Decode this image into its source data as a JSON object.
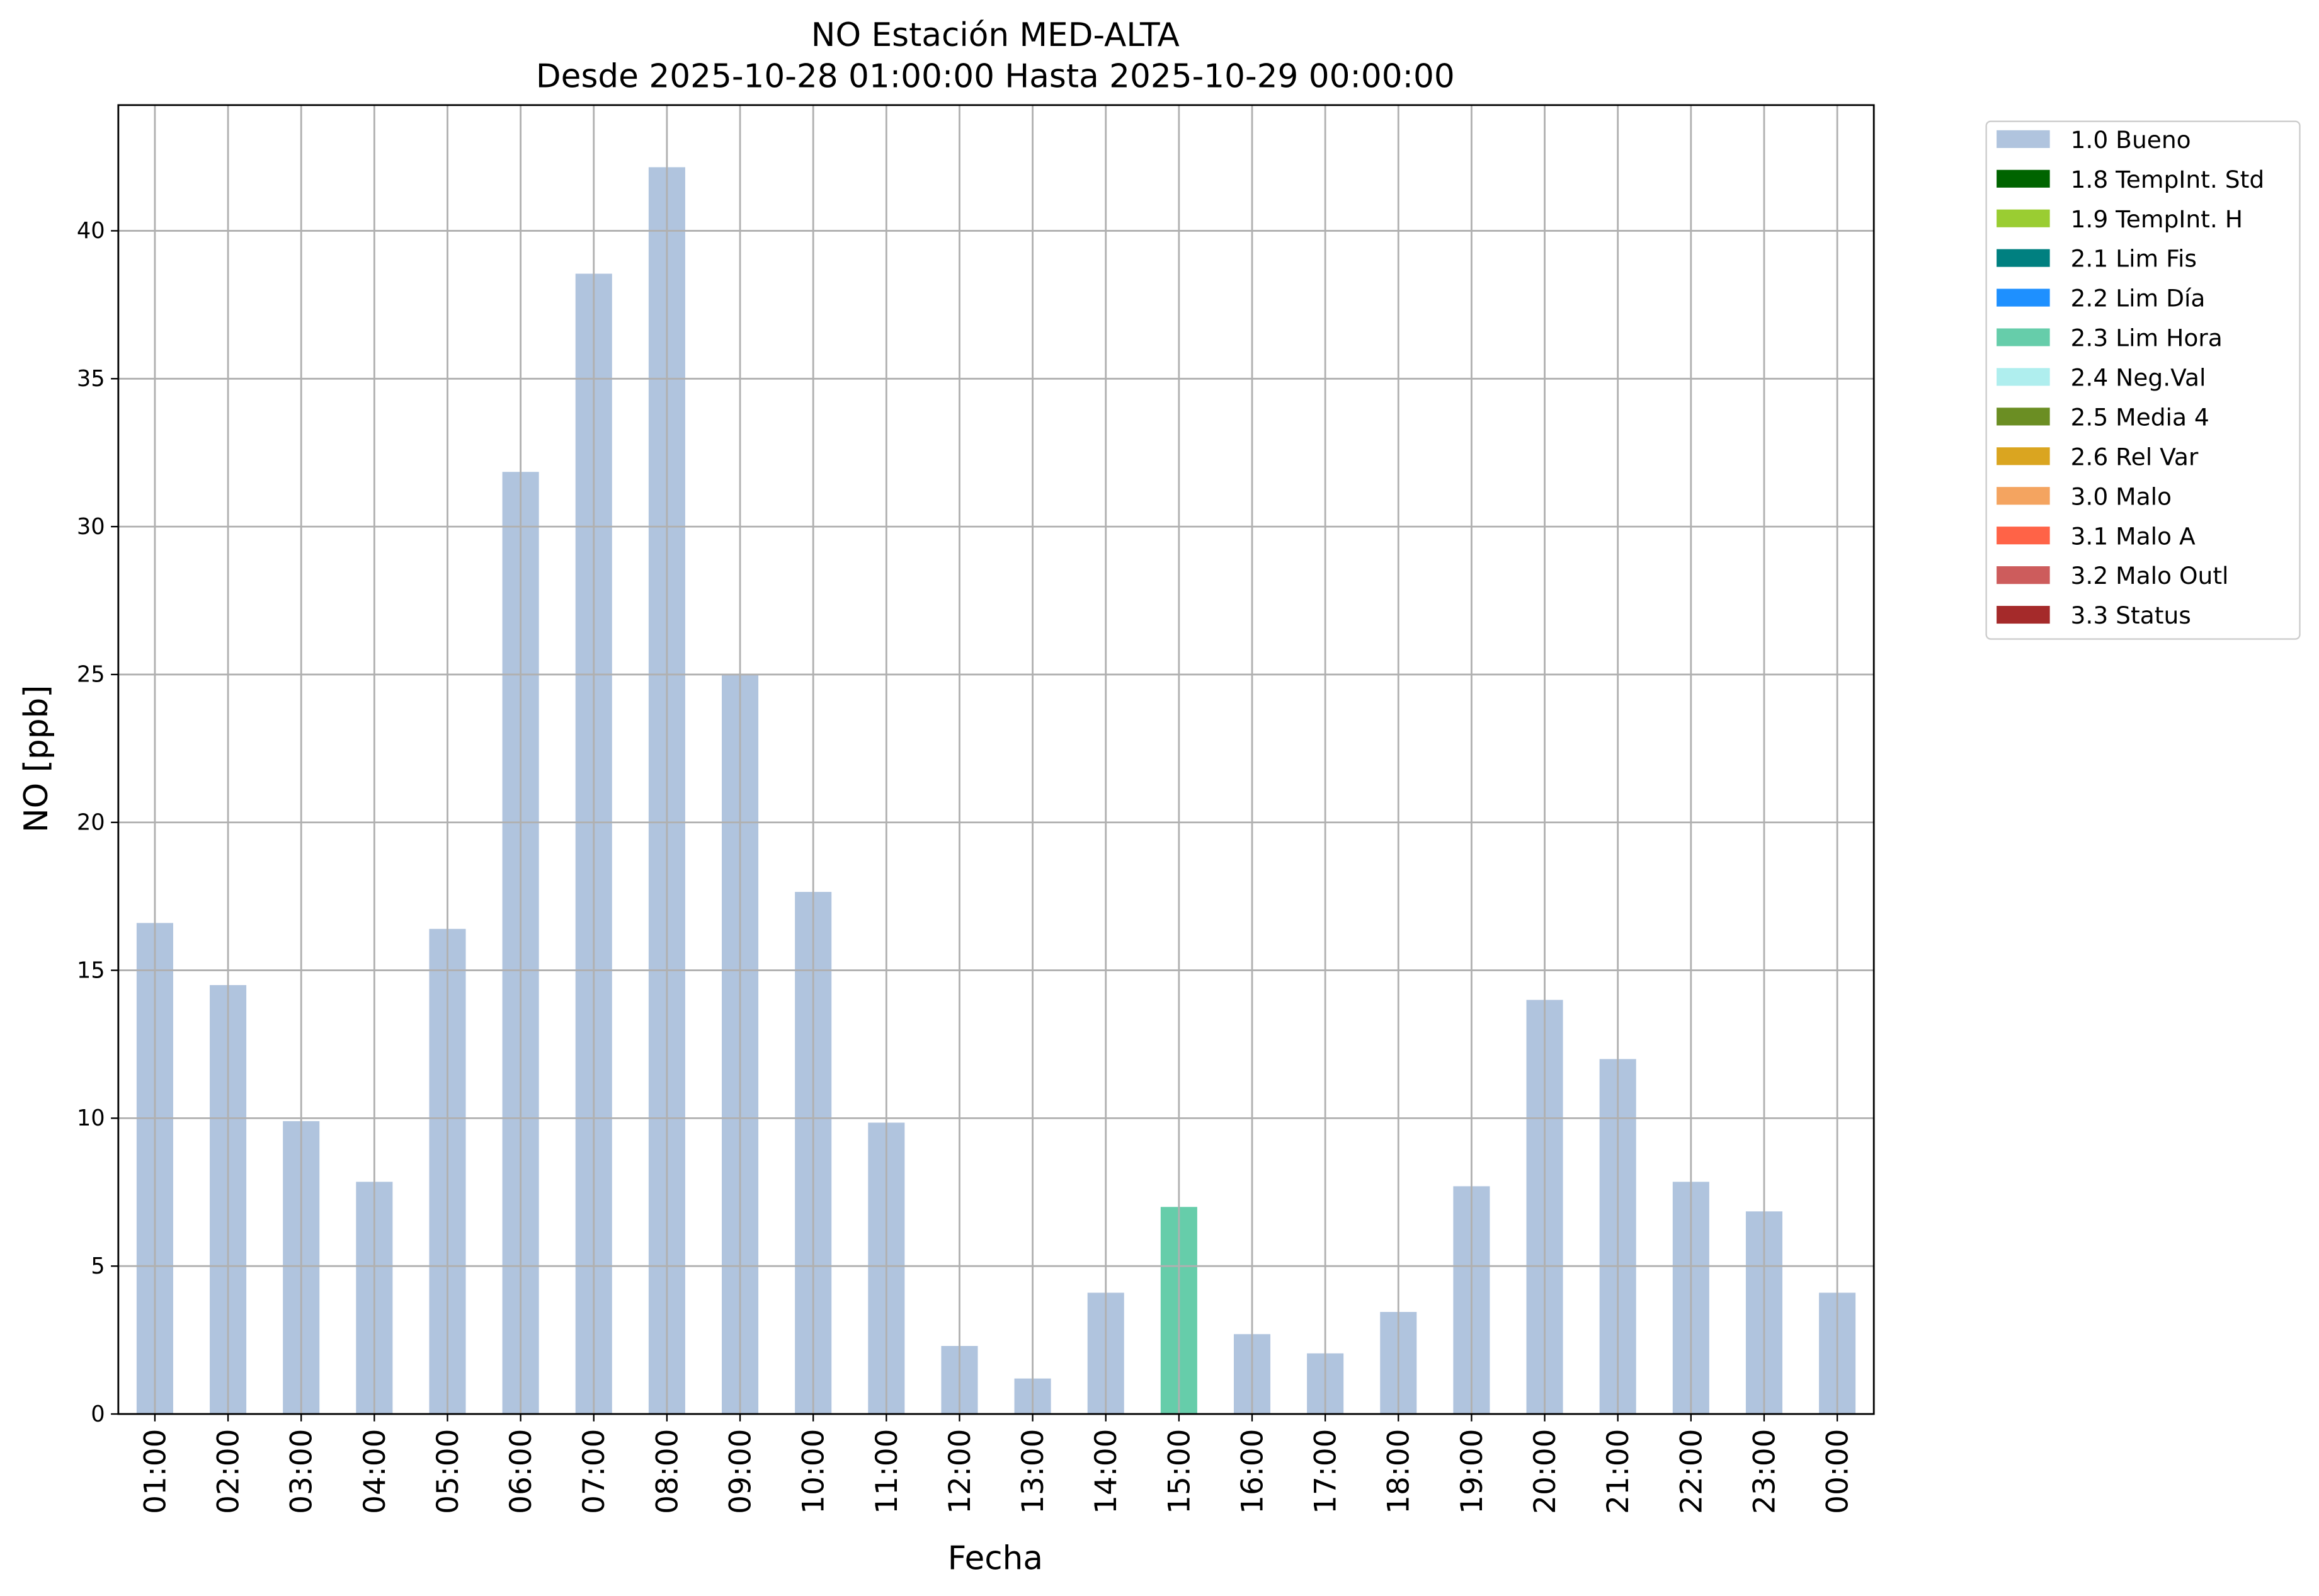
{
  "chart_data": {
    "type": "stacked_bar",
    "title": "NO Estación MED-ALTA",
    "subtitle": "Desde 2025-10-28 01:00:00 Hasta 2025-10-29 00:00:00",
    "x_label": "Fecha",
    "y_label": "NO [ppb]",
    "categories": [
      "01:00",
      "02:00",
      "03:00",
      "04:00",
      "05:00",
      "06:00",
      "07:00",
      "08:00",
      "09:00",
      "10:00",
      "11:00",
      "12:00",
      "13:00",
      "14:00",
      "15:00",
      "16:00",
      "17:00",
      "18:00",
      "19:00",
      "20:00",
      "21:00",
      "22:00",
      "23:00",
      "00:00"
    ],
    "series": [
      {
        "name": "1.0 Bueno",
        "color": "#b0c4de",
        "values": [
          16.6,
          14.5,
          9.9,
          7.85,
          16.4,
          31.85,
          38.55,
          42.15,
          25.0,
          17.65,
          9.85,
          2.3,
          1.2,
          4.1,
          null,
          2.7,
          2.05,
          3.45,
          7.7,
          14.0,
          12.0,
          7.85,
          6.85,
          4.1
        ]
      },
      {
        "name": "1.8 TempInt. Std",
        "color": "#006400",
        "values": [
          null,
          null,
          null,
          null,
          null,
          null,
          null,
          null,
          null,
          null,
          null,
          null,
          null,
          null,
          null,
          null,
          null,
          null,
          null,
          null,
          null,
          null,
          null,
          null
        ]
      },
      {
        "name": "1.9 TempInt. H",
        "color": "#9acd32",
        "values": [
          null,
          null,
          null,
          null,
          null,
          null,
          null,
          null,
          null,
          null,
          null,
          null,
          null,
          null,
          null,
          null,
          null,
          null,
          null,
          null,
          null,
          null,
          null,
          null
        ]
      },
      {
        "name": "2.1 Lim Fis",
        "color": "#008080",
        "values": [
          null,
          null,
          null,
          null,
          null,
          null,
          null,
          null,
          null,
          null,
          null,
          null,
          null,
          null,
          null,
          null,
          null,
          null,
          null,
          null,
          null,
          null,
          null,
          null
        ]
      },
      {
        "name": "2.2 Lim Día",
        "color": "#1e90ff",
        "values": [
          null,
          null,
          null,
          null,
          null,
          null,
          null,
          null,
          null,
          null,
          null,
          null,
          null,
          null,
          null,
          null,
          null,
          null,
          null,
          null,
          null,
          null,
          null,
          null
        ]
      },
      {
        "name": "2.3 Lim Hora",
        "color": "#66cdaa",
        "values": [
          null,
          null,
          null,
          null,
          null,
          null,
          null,
          null,
          null,
          null,
          null,
          null,
          null,
          null,
          7.0,
          null,
          null,
          null,
          null,
          null,
          null,
          null,
          null,
          null
        ]
      },
      {
        "name": "2.4 Neg.Val",
        "color": "#afeeee",
        "values": [
          null,
          null,
          null,
          null,
          null,
          null,
          null,
          null,
          null,
          null,
          null,
          null,
          null,
          null,
          null,
          null,
          null,
          null,
          null,
          null,
          null,
          null,
          null,
          null
        ]
      },
      {
        "name": "2.5 Media 4",
        "color": "#6b8e23",
        "values": [
          null,
          null,
          null,
          null,
          null,
          null,
          null,
          null,
          null,
          null,
          null,
          null,
          null,
          null,
          null,
          null,
          null,
          null,
          null,
          null,
          null,
          null,
          null,
          null
        ]
      },
      {
        "name": "2.6 Rel Var",
        "color": "#daa520",
        "values": [
          null,
          null,
          null,
          null,
          null,
          null,
          null,
          null,
          null,
          null,
          null,
          null,
          null,
          null,
          null,
          null,
          null,
          null,
          null,
          null,
          null,
          null,
          null,
          null
        ]
      },
      {
        "name": "3.0 Malo",
        "color": "#f4a460",
        "values": [
          null,
          null,
          null,
          null,
          null,
          null,
          null,
          null,
          null,
          null,
          null,
          null,
          null,
          null,
          null,
          null,
          null,
          null,
          null,
          null,
          null,
          null,
          null,
          null
        ]
      },
      {
        "name": "3.1 Malo A",
        "color": "#ff6347",
        "values": [
          null,
          null,
          null,
          null,
          null,
          null,
          null,
          null,
          null,
          null,
          null,
          null,
          null,
          null,
          null,
          null,
          null,
          null,
          null,
          null,
          null,
          null,
          null,
          null
        ]
      },
      {
        "name": "3.2 Malo Outl",
        "color": "#cd5c5c",
        "values": [
          null,
          null,
          null,
          null,
          null,
          null,
          null,
          null,
          null,
          null,
          null,
          null,
          null,
          null,
          null,
          null,
          null,
          null,
          null,
          null,
          null,
          null,
          null,
          null
        ]
      },
      {
        "name": "3.3 Status",
        "color": "#a52a2a",
        "values": [
          null,
          null,
          null,
          null,
          null,
          null,
          null,
          null,
          null,
          null,
          null,
          null,
          null,
          null,
          null,
          null,
          null,
          null,
          null,
          null,
          null,
          null,
          null,
          null
        ]
      }
    ],
    "ylim": [
      0,
      44.25
    ],
    "yticks": [
      0,
      5,
      10,
      15,
      20,
      25,
      30,
      35,
      40
    ],
    "grid": true
  }
}
